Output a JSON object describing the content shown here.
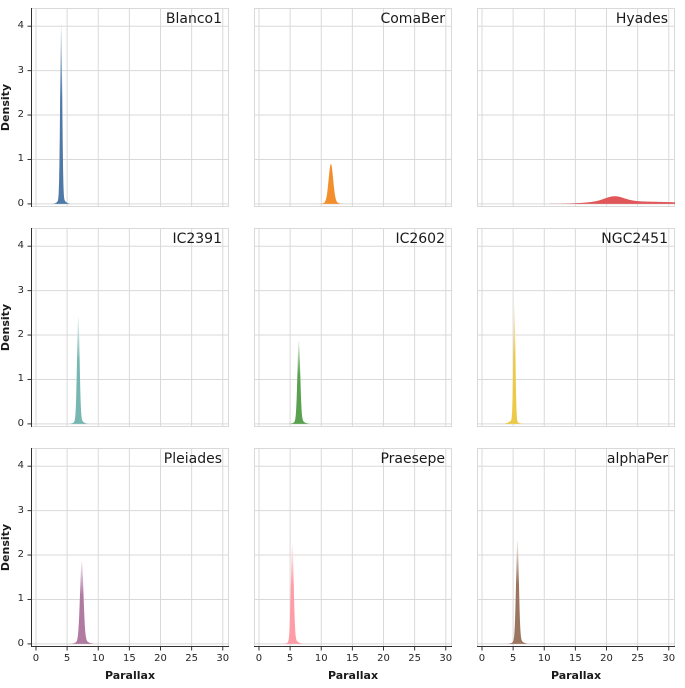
{
  "figure": {
    "kind": "facet-grid-density-plots",
    "rows": 3,
    "cols": 3,
    "background": "#ffffff"
  },
  "axes": {
    "xlabel": "Parallax",
    "ylabel": "Density",
    "x_ticks": [
      0,
      5,
      10,
      15,
      20,
      25,
      30
    ],
    "y_ticks": [
      0,
      1,
      2,
      3,
      4
    ],
    "x_domain": [
      -0.8,
      31.0
    ],
    "y_domain": [
      -0.07,
      4.41
    ],
    "grid": true,
    "grid_color": "#d9d9d9",
    "spine_color": "#303030",
    "tick_label_color": "#262626",
    "title_color": "#1a1a1a"
  },
  "chart_data": [
    {
      "type": "kde-area",
      "title": "Blanco1",
      "color": "#4e79a7",
      "tip_fade": true,
      "peak_parallax": 4.05,
      "peak_density": 4.1,
      "components": [
        {
          "center": 4.05,
          "sigma": 0.16,
          "height": 4.0
        },
        {
          "center": 4.1,
          "sigma": 0.5,
          "height": 0.12
        }
      ]
    },
    {
      "type": "kde-area",
      "title": "ComaBer",
      "color": "#f28e2b",
      "tip_fade": false,
      "peak_parallax": 11.55,
      "peak_density": 0.9,
      "components": [
        {
          "center": 11.55,
          "sigma": 0.36,
          "height": 0.85
        },
        {
          "center": 11.6,
          "sigma": 0.75,
          "height": 0.05
        }
      ]
    },
    {
      "type": "kde-area",
      "title": "Hyades",
      "color": "#e15759",
      "tip_fade": false,
      "peak_parallax": 21.3,
      "peak_density": 0.17,
      "components": [
        {
          "center": 21.3,
          "sigma": 1.5,
          "height": 0.105
        },
        {
          "center": 20.5,
          "sigma": 3.2,
          "height": 0.04
        },
        {
          "center": 27.0,
          "sigma": 6.0,
          "height": 0.045
        }
      ]
    },
    {
      "type": "kde-area",
      "title": "IC2391",
      "color": "#76b7b2",
      "tip_fade": true,
      "peak_parallax": 6.8,
      "peak_density": 2.45,
      "components": [
        {
          "center": 6.8,
          "sigma": 0.2,
          "height": 2.35
        },
        {
          "center": 6.9,
          "sigma": 0.55,
          "height": 0.1
        }
      ]
    },
    {
      "type": "kde-area",
      "title": "IC2602",
      "color": "#59a14f",
      "tip_fade": true,
      "peak_parallax": 6.4,
      "peak_density": 1.9,
      "components": [
        {
          "center": 6.4,
          "sigma": 0.22,
          "height": 1.8
        },
        {
          "center": 6.5,
          "sigma": 0.6,
          "height": 0.09
        }
      ]
    },
    {
      "type": "kde-area",
      "title": "NGC2451",
      "color": "#edc948",
      "tip_fade": true,
      "peak_parallax": 5.2,
      "peak_density": 2.7,
      "components": [
        {
          "center": 5.2,
          "sigma": 0.16,
          "height": 2.62
        },
        {
          "center": 5.0,
          "sigma": 0.6,
          "height": 0.08
        }
      ]
    },
    {
      "type": "kde-area",
      "title": "Pleiades",
      "color": "#b07aa1",
      "tip_fade": true,
      "peak_parallax": 7.35,
      "peak_density": 1.9,
      "components": [
        {
          "center": 7.35,
          "sigma": 0.27,
          "height": 1.78
        },
        {
          "center": 7.45,
          "sigma": 0.7,
          "height": 0.1
        }
      ]
    },
    {
      "type": "kde-area",
      "title": "Praesepe",
      "color": "#ff9da7",
      "tip_fade": true,
      "peak_parallax": 5.35,
      "peak_density": 2.3,
      "components": [
        {
          "center": 5.35,
          "sigma": 0.22,
          "height": 2.2
        },
        {
          "center": 5.55,
          "sigma": 0.6,
          "height": 0.09
        }
      ]
    },
    {
      "type": "kde-area",
      "title": "alphaPer",
      "color": "#9c755f",
      "tip_fade": true,
      "peak_parallax": 5.7,
      "peak_density": 2.35,
      "components": [
        {
          "center": 5.7,
          "sigma": 0.22,
          "height": 2.25
        },
        {
          "center": 5.8,
          "sigma": 0.6,
          "height": 0.1
        }
      ]
    }
  ]
}
